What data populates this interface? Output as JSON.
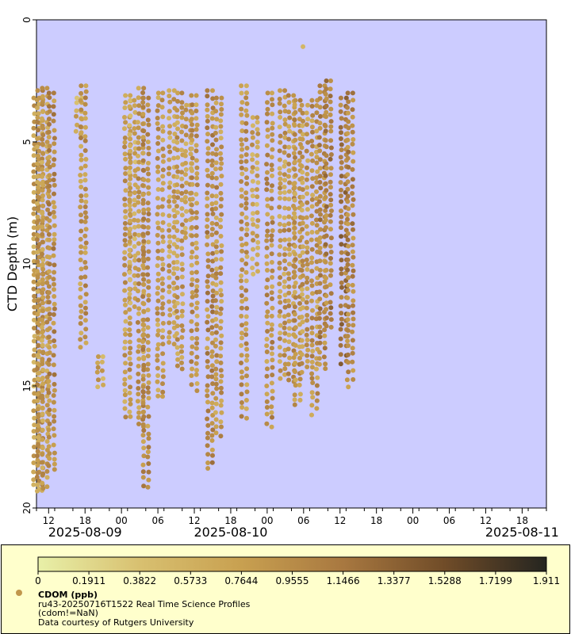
{
  "chart_data": {
    "type": "scatter",
    "xlabel": "",
    "ylabel": "CTD Depth (m)",
    "ylim": [
      0,
      20
    ],
    "y_inverted": true,
    "y_ticks": [
      "0",
      "5",
      "10",
      "15",
      "20"
    ],
    "x_range_hours": [
      -14,
      70
    ],
    "x_ticks": [
      {
        "hour": -12,
        "label": "12"
      },
      {
        "hour": -6,
        "label": "18"
      },
      {
        "hour": 0,
        "label": "00"
      },
      {
        "hour": 6,
        "label": "06"
      },
      {
        "hour": 12,
        "label": "12"
      },
      {
        "hour": 18,
        "label": "18"
      },
      {
        "hour": 24,
        "label": "00"
      },
      {
        "hour": 30,
        "label": "06"
      },
      {
        "hour": 36,
        "label": "12"
      },
      {
        "hour": 42,
        "label": "18"
      },
      {
        "hour": 48,
        "label": "00"
      },
      {
        "hour": 54,
        "label": "06"
      },
      {
        "hour": 60,
        "label": "12"
      },
      {
        "hour": 66,
        "label": "18"
      }
    ],
    "date_labels": [
      {
        "hour": -6,
        "label": "2025-08-09"
      },
      {
        "hour": 18,
        "label": "2025-08-10"
      },
      {
        "hour": 66,
        "label": "2025-08-11"
      }
    ],
    "colorbar": {
      "min": 0,
      "max": 1.911,
      "ticks": [
        "0",
        "0.1911",
        "0.3822",
        "0.5733",
        "0.7644",
        "0.9555",
        "1.1466",
        "1.3377",
        "1.5288",
        "1.7199",
        "1.911"
      ],
      "colors": [
        "#e8f0a8",
        "#d8c070",
        "#c8a050",
        "#a87840",
        "#704c28",
        "#252520"
      ]
    },
    "series": [
      {
        "name": "CDOM (ppb)",
        "profiles": [
          {
            "hour": -14.0,
            "top": 3.2,
            "bottom": 19.3,
            "value": 0.75
          },
          {
            "hour": -13.4,
            "top": 2.9,
            "bottom": 19.4,
            "value": 0.85
          },
          {
            "hour": -12.6,
            "top": 2.8,
            "bottom": 19.2,
            "value": 0.8
          },
          {
            "hour": -11.5,
            "top": 3.0,
            "bottom": 18.5,
            "value": 0.95
          },
          {
            "hour": -7.0,
            "top": 3.2,
            "bottom": 4.7,
            "value": 0.6
          },
          {
            "hour": -6.3,
            "top": 2.7,
            "bottom": 13.5,
            "value": 0.85
          },
          {
            "hour": -3.5,
            "top": 13.8,
            "bottom": 15.1,
            "value": 0.7
          },
          {
            "hour": 1.0,
            "top": 3.1,
            "bottom": 16.4,
            "value": 0.8
          },
          {
            "hour": 1.8,
            "top": 3.3,
            "bottom": 11.8,
            "value": 0.65
          },
          {
            "hour": 3.2,
            "top": 2.8,
            "bottom": 16.8,
            "value": 0.85
          },
          {
            "hour": 4.0,
            "top": 3.2,
            "bottom": 19.2,
            "value": 0.9
          },
          {
            "hour": 6.4,
            "top": 3.0,
            "bottom": 15.5,
            "value": 0.8
          },
          {
            "hour": 8.3,
            "top": 2.9,
            "bottom": 13.3,
            "value": 0.75
          },
          {
            "hour": 9.6,
            "top": 3.0,
            "bottom": 14.4,
            "value": 0.8
          },
          {
            "hour": 11.0,
            "top": 3.5,
            "bottom": 9.0,
            "value": 0.7
          },
          {
            "hour": 12.0,
            "top": 3.1,
            "bottom": 15.3,
            "value": 0.85
          },
          {
            "hour": 14.6,
            "top": 2.9,
            "bottom": 18.4,
            "value": 0.95
          },
          {
            "hour": 16.0,
            "top": 3.2,
            "bottom": 17.2,
            "value": 0.85
          },
          {
            "hour": 20.2,
            "top": 2.7,
            "bottom": 16.4,
            "value": 0.85
          },
          {
            "hour": 22.0,
            "top": 4.0,
            "bottom": 10.6,
            "value": 0.7
          },
          {
            "hour": 24.4,
            "top": 3.0,
            "bottom": 16.7,
            "value": 0.9
          },
          {
            "hour": 26.5,
            "top": 2.9,
            "bottom": 14.7,
            "value": 0.8
          },
          {
            "hour": 28.0,
            "top": 3.1,
            "bottom": 15.0,
            "value": 0.85
          },
          {
            "hour": 29.0,
            "top": 3.3,
            "bottom": 15.9,
            "value": 0.85
          },
          {
            "hour": 30.2,
            "top": 3.5,
            "bottom": 14.5,
            "value": 0.8
          },
          {
            "hour": 31.8,
            "top": 3.3,
            "bottom": 16.2,
            "value": 0.85
          },
          {
            "hour": 33.1,
            "top": 2.7,
            "bottom": 14.3,
            "value": 1.0
          },
          {
            "hour": 34.1,
            "top": 2.5,
            "bottom": 12.8,
            "value": 1.05
          },
          {
            "hour": 36.6,
            "top": 3.2,
            "bottom": 14.2,
            "value": 1.15
          },
          {
            "hour": 37.7,
            "top": 3.0,
            "bottom": 15.1,
            "value": 1.0
          }
        ]
      }
    ],
    "outliers": [
      {
        "hour": 29.9,
        "depth": 1.1,
        "value": 0.5
      }
    ]
  },
  "legend": {
    "title": "CDOM (ppb)",
    "line1": "ru43-20250716T1522 Real Time Science Profiles",
    "line2": "(cdom!=NaN)",
    "line3": "Data courtesy of Rutgers University"
  }
}
